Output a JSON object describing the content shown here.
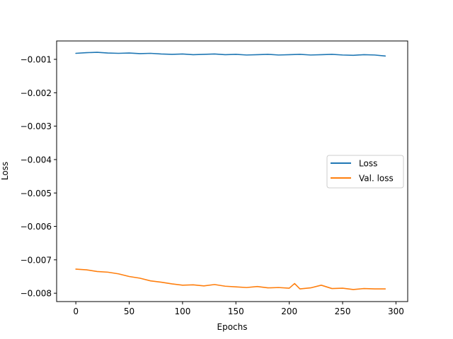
{
  "chart_data": {
    "type": "line",
    "title": "",
    "xlabel": "Epochs",
    "ylabel": "Loss",
    "xlim": [
      -18,
      311
    ],
    "ylim": [
      -0.00825,
      -0.00045
    ],
    "xticks": [
      0,
      50,
      100,
      150,
      200,
      250,
      300
    ],
    "xtick_labels": [
      "0",
      "50",
      "100",
      "150",
      "200",
      "250",
      "300"
    ],
    "yticks": [
      -0.008,
      -0.007,
      -0.006,
      -0.005,
      -0.004,
      -0.003,
      -0.002,
      -0.001
    ],
    "ytick_labels": [
      "−0.008",
      "−0.007",
      "−0.006",
      "−0.005",
      "−0.004",
      "−0.003",
      "−0.002",
      "−0.001"
    ],
    "grid": false,
    "legend": "center-right",
    "series": [
      {
        "name": "Loss",
        "color": "#1f77b4",
        "x": [
          0,
          10,
          20,
          30,
          40,
          50,
          60,
          70,
          80,
          90,
          100,
          110,
          120,
          130,
          140,
          150,
          160,
          170,
          180,
          190,
          200,
          210,
          220,
          230,
          240,
          250,
          260,
          270,
          280,
          290
        ],
        "y": [
          -0.00082,
          -0.0008,
          -0.00079,
          -0.00081,
          -0.00082,
          -0.00081,
          -0.00083,
          -0.00082,
          -0.00084,
          -0.00085,
          -0.00084,
          -0.00086,
          -0.00085,
          -0.00084,
          -0.00086,
          -0.00085,
          -0.00087,
          -0.00086,
          -0.00085,
          -0.00087,
          -0.00086,
          -0.00085,
          -0.00087,
          -0.00086,
          -0.00085,
          -0.00087,
          -0.00088,
          -0.00086,
          -0.00087,
          -0.0009
        ]
      },
      {
        "name": "Val. loss",
        "color": "#ff7f0e",
        "x": [
          0,
          10,
          20,
          30,
          40,
          50,
          60,
          70,
          80,
          90,
          100,
          110,
          120,
          130,
          140,
          150,
          160,
          170,
          180,
          190,
          200,
          205,
          210,
          220,
          230,
          240,
          250,
          260,
          270,
          280,
          290
        ],
        "y": [
          -0.00728,
          -0.0073,
          -0.00735,
          -0.00737,
          -0.00742,
          -0.0075,
          -0.00755,
          -0.00763,
          -0.00767,
          -0.00772,
          -0.00776,
          -0.00775,
          -0.00778,
          -0.00774,
          -0.00779,
          -0.00781,
          -0.00783,
          -0.0078,
          -0.00784,
          -0.00783,
          -0.00785,
          -0.00771,
          -0.00787,
          -0.00784,
          -0.00776,
          -0.00786,
          -0.00785,
          -0.00789,
          -0.00786,
          -0.00787,
          -0.00787
        ]
      }
    ]
  }
}
